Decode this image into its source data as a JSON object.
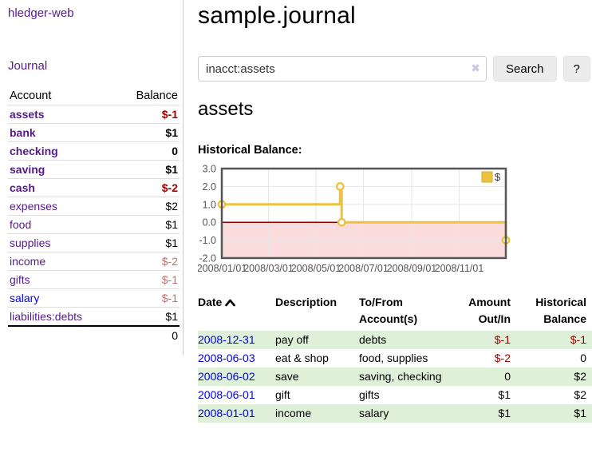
{
  "app": {
    "title": "hledger-web"
  },
  "colors": {
    "link_purple": "#551a8b",
    "link_blue": "#0000ee",
    "negative_strong": "#a00000",
    "negative_soft": "#bf6f6f",
    "row_stripe_green": "#dff0d8",
    "chart_series_gold": "#edc240",
    "chart_zero_line": "#8b0000",
    "chart_negative_region": "#fbdcdc"
  },
  "sidebar": {
    "journal_link": "Journal",
    "table": {
      "account_header": "Account",
      "balance_header": "Balance",
      "rows": [
        {
          "account": "assets",
          "balance": "$-1",
          "level": 1,
          "bold": true,
          "negative": "strong"
        },
        {
          "account": "bank",
          "balance": "$1",
          "level": 2,
          "bold": true,
          "negative": null
        },
        {
          "account": "checking",
          "balance": "0",
          "level": 3,
          "bold": true,
          "negative": null
        },
        {
          "account": "saving",
          "balance": "$1",
          "level": 3,
          "bold": true,
          "negative": null
        },
        {
          "account": "cash",
          "balance": "$-2",
          "level": 2,
          "bold": true,
          "negative": "strong"
        },
        {
          "account": "expenses",
          "balance": "$2",
          "level": 1,
          "bold": false,
          "negative": null
        },
        {
          "account": "food",
          "balance": "$1",
          "level": 2,
          "bold": false,
          "negative": null
        },
        {
          "account": "supplies",
          "balance": "$1",
          "level": 2,
          "bold": false,
          "negative": null
        },
        {
          "account": "income",
          "balance": "$-2",
          "level": 1,
          "bold": false,
          "negative": "soft"
        },
        {
          "account": "gifts",
          "balance": "$-1",
          "level": 2,
          "bold": false,
          "negative": "soft"
        },
        {
          "account": "salary",
          "balance": "$-1",
          "level": 2,
          "bold": false,
          "negative": "soft",
          "link_color": "blue"
        },
        {
          "account": "liabilities:debts",
          "balance": "$1",
          "level": 1,
          "bold": false,
          "negative": null
        }
      ],
      "total": "0"
    }
  },
  "main": {
    "page_title": "sample.journal",
    "search": {
      "value": "inacct:assets",
      "clear_icon": "✖",
      "button_label": "Search",
      "help_label": "?"
    },
    "account_title": "assets",
    "chart_label": "Historical Balance:"
  },
  "chart_data": {
    "type": "line",
    "step": true,
    "series": [
      {
        "name": "$",
        "color": "#edc240",
        "points": [
          {
            "date": "2008-01-01",
            "day": 0,
            "value": 1
          },
          {
            "date": "2008-06-01",
            "day": 152,
            "value": 2
          },
          {
            "date": "2008-06-03",
            "day": 154,
            "value": 0
          },
          {
            "date": "2008-12-31",
            "day": 365,
            "value": -1
          }
        ]
      }
    ],
    "x_ticks": [
      {
        "label": "2008/01/01",
        "day": 0
      },
      {
        "label": "2008/03/01",
        "day": 60
      },
      {
        "label": "2008/05/01",
        "day": 121
      },
      {
        "label": "2008/07/01",
        "day": 182
      },
      {
        "label": "2008/09/01",
        "day": 244
      },
      {
        "label": "2008/11/01",
        "day": 305
      }
    ],
    "y_ticks": [
      3.0,
      2.0,
      1.0,
      0.0,
      -1.0,
      -2.0
    ],
    "xlim_days": [
      0,
      365
    ],
    "ylim": [
      -2,
      3
    ],
    "grid": true,
    "legend": {
      "label": "$",
      "position": "top-right"
    },
    "zero_line_color": "#8b0000",
    "negative_region_color": "#fbdcdc"
  },
  "register_table": {
    "headers": [
      "Date",
      "Description",
      "To/From Account(s)",
      "Amount Out/In",
      "Historical Balance"
    ],
    "sort": {
      "column": "Date",
      "direction": "ascending"
    },
    "rows": [
      {
        "date": "2008-12-31",
        "description": "pay off",
        "accounts": "debts",
        "amount": "$-1",
        "balance": "$-1"
      },
      {
        "date": "2008-06-03",
        "description": "eat & shop",
        "accounts": "food, supplies",
        "amount": "$-2",
        "balance": "0"
      },
      {
        "date": "2008-06-02",
        "description": "save",
        "accounts": "saving, checking",
        "amount": "0",
        "balance": "$2"
      },
      {
        "date": "2008-06-01",
        "description": "gift",
        "accounts": "gifts",
        "amount": "$1",
        "balance": "$2"
      },
      {
        "date": "2008-01-01",
        "description": "income",
        "accounts": "salary",
        "amount": "$1",
        "balance": "$1"
      }
    ]
  }
}
